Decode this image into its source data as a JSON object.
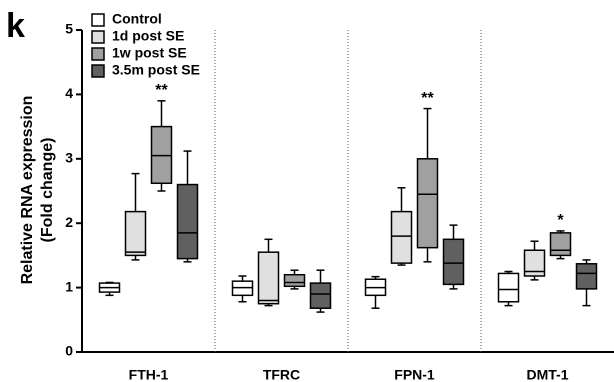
{
  "chart_data": {
    "type": "box",
    "panel_label": "k",
    "ylabel": [
      "Relative RNA expression",
      "(Fold change)"
    ],
    "categories": [
      "FTH-1",
      "TFRC",
      "FPN-1",
      "DMT-1"
    ],
    "ylim": [
      0,
      5
    ],
    "yticks": [
      0,
      1,
      2,
      3,
      4,
      5
    ],
    "grid": false,
    "legend": "top-left",
    "series": [
      {
        "name": "Control",
        "color": "#ffffff",
        "boxes": [
          {
            "min": 0.88,
            "q1": 0.93,
            "median": 1.0,
            "q3": 1.07,
            "max": 1.08
          },
          {
            "min": 0.78,
            "q1": 0.88,
            "median": 1.0,
            "q3": 1.1,
            "max": 1.18
          },
          {
            "min": 0.68,
            "q1": 0.88,
            "median": 1.0,
            "q3": 1.13,
            "max": 1.17
          },
          {
            "min": 0.72,
            "q1": 0.78,
            "median": 0.97,
            "q3": 1.22,
            "max": 1.25
          }
        ]
      },
      {
        "name": "1d post SE",
        "color": "#e0e0e0",
        "boxes": [
          {
            "min": 1.43,
            "q1": 1.5,
            "median": 1.55,
            "q3": 2.18,
            "max": 2.77
          },
          {
            "min": 0.72,
            "q1": 0.75,
            "median": 0.8,
            "q3": 1.55,
            "max": 1.75
          },
          {
            "min": 1.35,
            "q1": 1.38,
            "median": 1.8,
            "q3": 2.18,
            "max": 2.55
          },
          {
            "min": 1.12,
            "q1": 1.18,
            "median": 1.25,
            "q3": 1.58,
            "max": 1.72
          }
        ]
      },
      {
        "name": "1w post SE",
        "color": "#a0a0a0",
        "boxes": [
          {
            "min": 2.5,
            "q1": 2.62,
            "median": 3.05,
            "q3": 3.5,
            "max": 3.9
          },
          {
            "min": 0.98,
            "q1": 1.02,
            "median": 1.08,
            "q3": 1.2,
            "max": 1.27
          },
          {
            "min": 1.4,
            "q1": 1.62,
            "median": 2.45,
            "q3": 3.0,
            "max": 3.78
          },
          {
            "min": 1.45,
            "q1": 1.5,
            "median": 1.58,
            "q3": 1.85,
            "max": 1.88
          }
        ]
      },
      {
        "name": "3.5m post SE",
        "color": "#606060",
        "boxes": [
          {
            "min": 1.4,
            "q1": 1.45,
            "median": 1.85,
            "q3": 2.6,
            "max": 3.12
          },
          {
            "min": 0.62,
            "q1": 0.68,
            "median": 0.9,
            "q3": 1.07,
            "max": 1.27
          },
          {
            "min": 0.98,
            "q1": 1.05,
            "median": 1.38,
            "q3": 1.75,
            "max": 1.97
          },
          {
            "min": 0.72,
            "q1": 0.98,
            "median": 1.22,
            "q3": 1.37,
            "max": 1.43
          }
        ]
      }
    ],
    "annotations": [
      {
        "text": "**",
        "category": 0,
        "series": 2
      },
      {
        "text": "**",
        "category": 2,
        "series": 2
      },
      {
        "text": "*",
        "category": 3,
        "series": 2
      }
    ]
  }
}
